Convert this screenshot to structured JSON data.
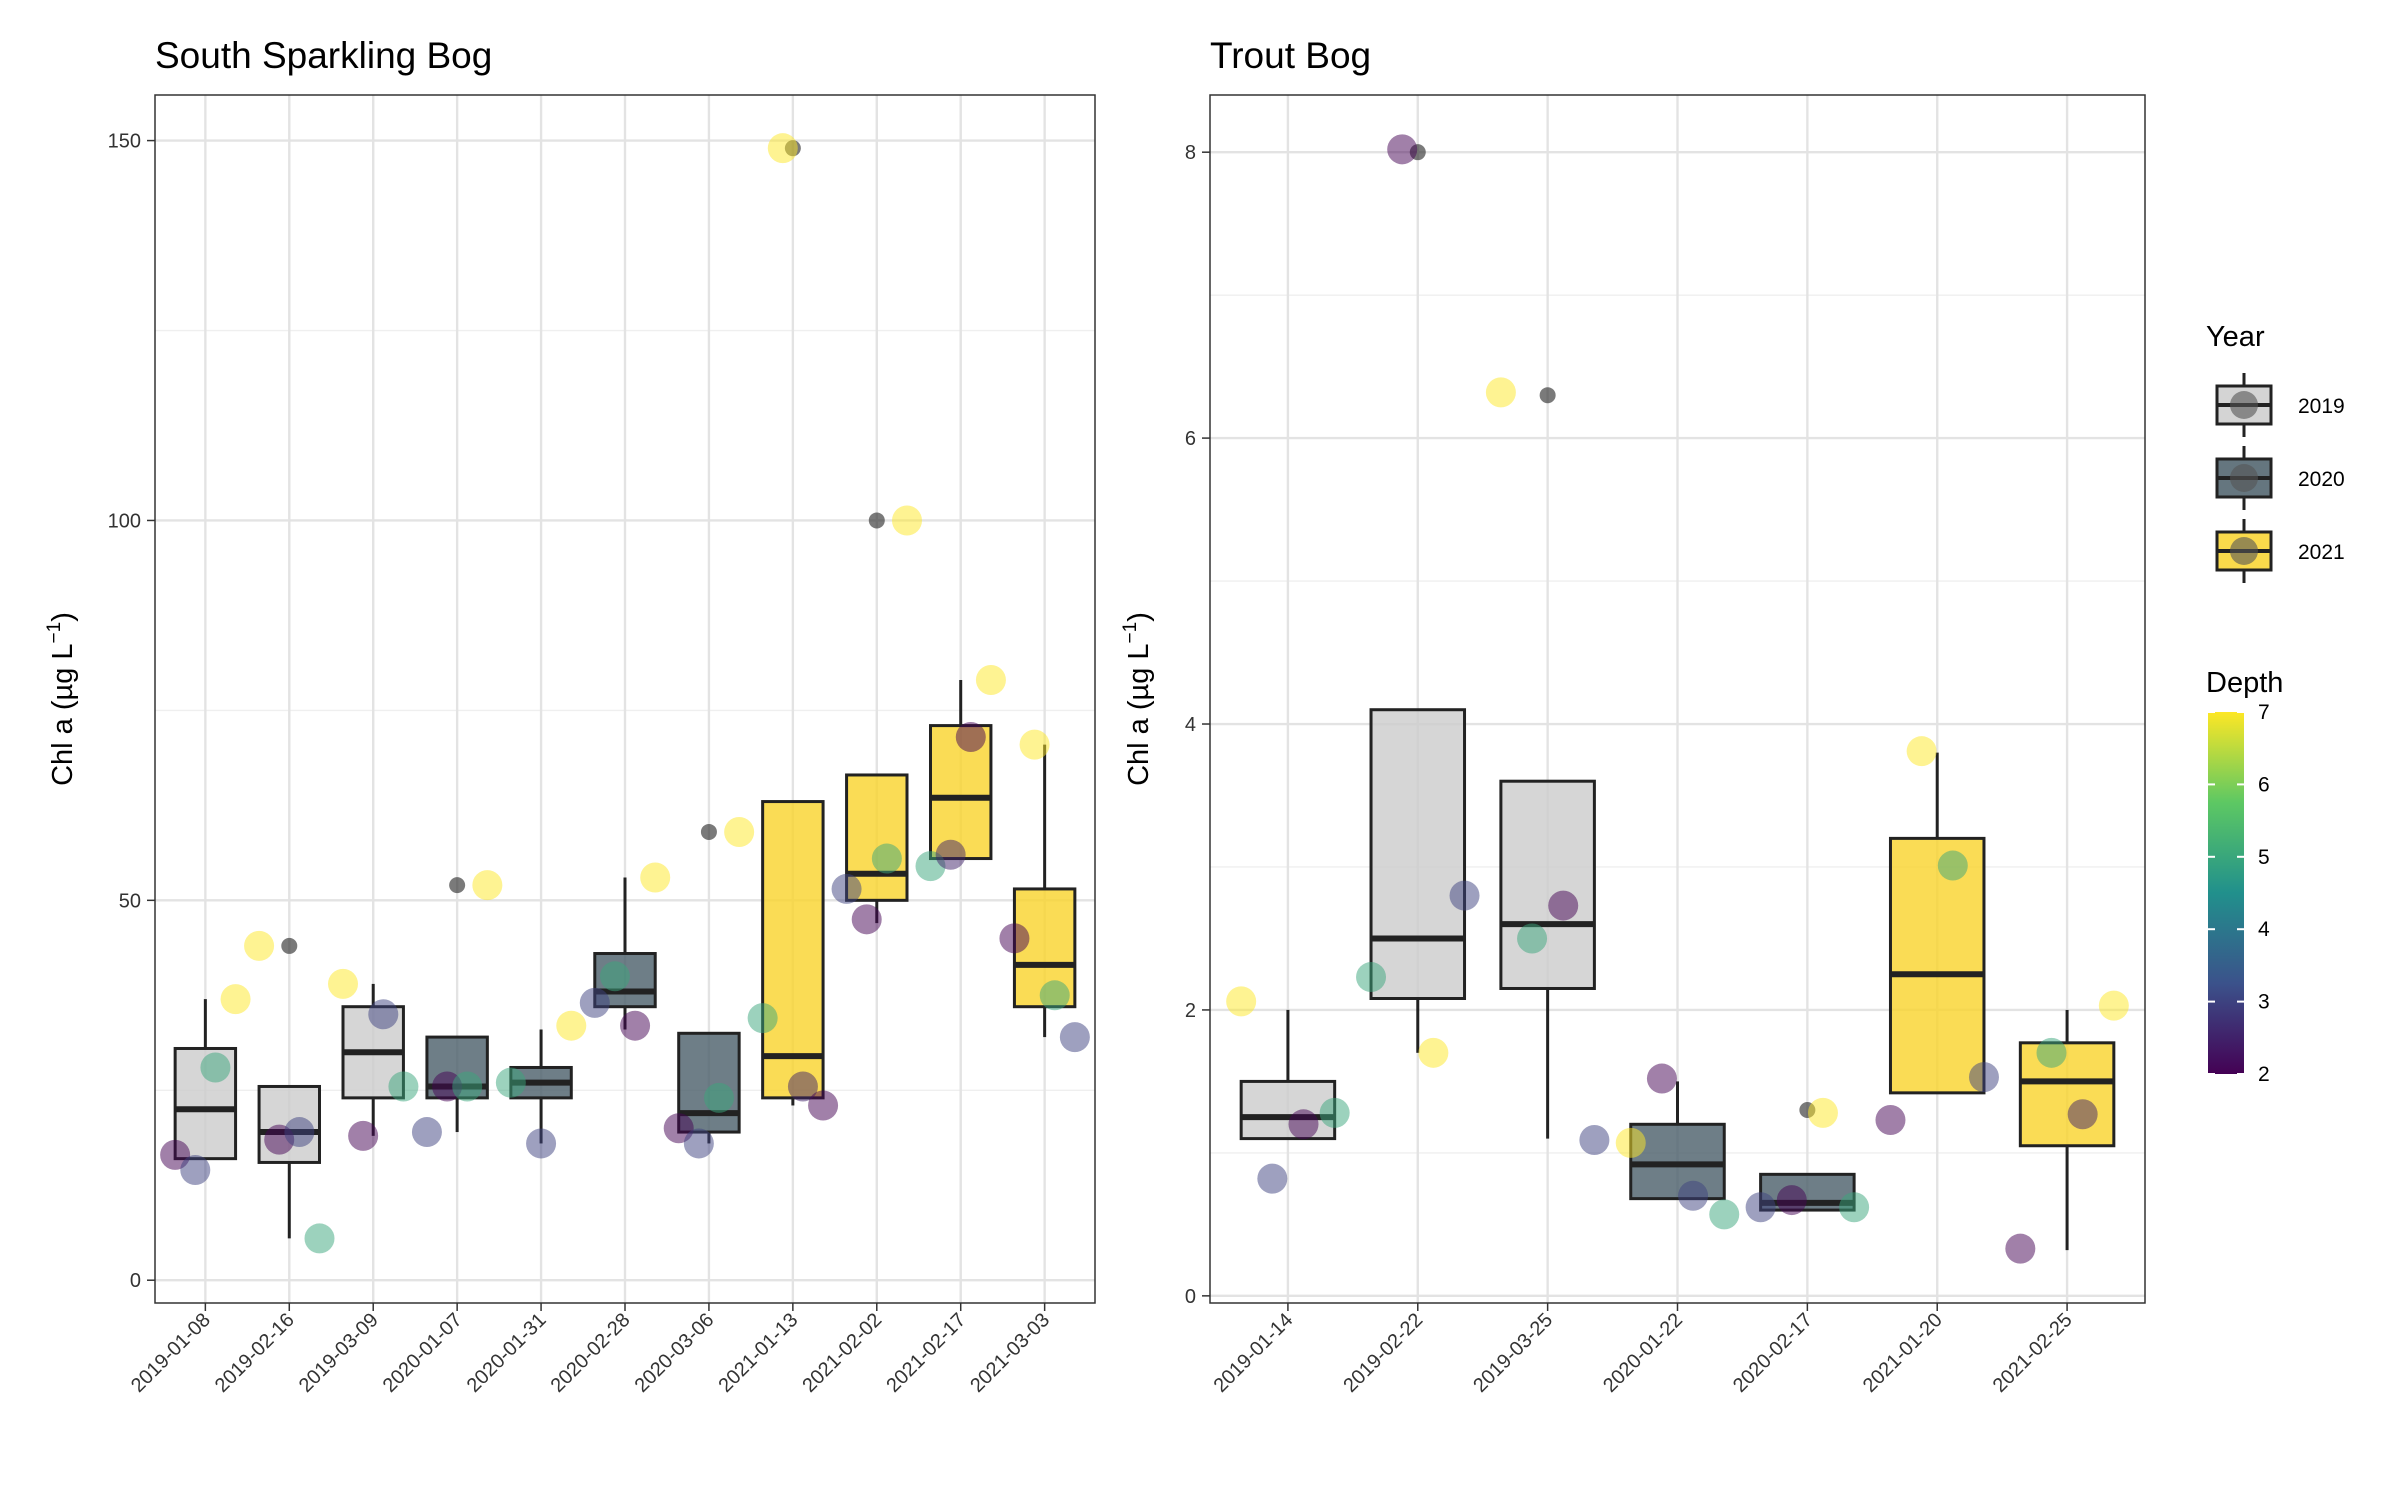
{
  "chart_data": [
    {
      "type": "box",
      "title": "South Sparkling Bog",
      "xlabel": "",
      "ylabel": "Chl a (µg L⁻¹)",
      "ylim": [
        -3,
        156
      ],
      "yticks": [
        0,
        50,
        100,
        150
      ],
      "grid": true,
      "categories": [
        "2019-01-08",
        "2019-02-16",
        "2019-03-09",
        "2020-01-07",
        "2020-01-31",
        "2020-02-28",
        "2020-03-06",
        "2021-01-13",
        "2021-02-02",
        "2021-02-17",
        "2021-03-03"
      ],
      "boxes": [
        {
          "date": "2019-01-08",
          "year": 2019,
          "whisker_low": 16,
          "q1": 16,
          "median": 22.5,
          "q3": 30.5,
          "whisker_high": 37
        },
        {
          "date": "2019-02-16",
          "year": 2019,
          "whisker_low": 5.5,
          "q1": 15.5,
          "median": 19.5,
          "q3": 25.5,
          "whisker_high": 25.5
        },
        {
          "date": "2019-03-09",
          "year": 2019,
          "whisker_low": 19,
          "q1": 24,
          "median": 30,
          "q3": 36,
          "whisker_high": 39
        },
        {
          "date": "2020-01-07",
          "year": 2020,
          "whisker_low": 19.5,
          "q1": 24,
          "median": 25.5,
          "q3": 32,
          "whisker_high": 32
        },
        {
          "date": "2020-01-31",
          "year": 2020,
          "whisker_low": 18,
          "q1": 24,
          "median": 26,
          "q3": 28,
          "whisker_high": 33
        },
        {
          "date": "2020-02-28",
          "year": 2020,
          "whisker_low": 33,
          "q1": 36,
          "median": 38,
          "q3": 43,
          "whisker_high": 53
        },
        {
          "date": "2020-03-06",
          "year": 2020,
          "whisker_low": 18,
          "q1": 19.5,
          "median": 22,
          "q3": 32.5,
          "whisker_high": 32.5
        },
        {
          "date": "2021-01-13",
          "year": 2021,
          "whisker_low": 23,
          "q1": 24,
          "median": 29.5,
          "q3": 63,
          "whisker_high": 63
        },
        {
          "date": "2021-02-02",
          "year": 2021,
          "whisker_low": 47,
          "q1": 50,
          "median": 53.5,
          "q3": 66.5,
          "whisker_high": 66.5
        },
        {
          "date": "2021-02-17",
          "year": 2021,
          "whisker_low": 55.5,
          "q1": 55.5,
          "median": 63.5,
          "q3": 73,
          "whisker_high": 79
        },
        {
          "date": "2021-03-03",
          "year": 2021,
          "whisker_low": 32,
          "q1": 36,
          "median": 41.5,
          "q3": 51.5,
          "whisker_high": 70.5
        }
      ],
      "outliers": [
        {
          "date": "2019-02-16",
          "year": 2019,
          "value": 44
        },
        {
          "date": "2020-01-07",
          "year": 2020,
          "value": 52
        },
        {
          "date": "2020-03-06",
          "year": 2020,
          "value": 59
        },
        {
          "date": "2021-01-13",
          "year": 2021,
          "value": 149
        },
        {
          "date": "2021-02-02",
          "year": 2021,
          "value": 100
        }
      ],
      "points": [
        {
          "date": "2019-01-08",
          "year": 2019,
          "depth": 2,
          "value": 16.5
        },
        {
          "date": "2019-01-08",
          "year": 2019,
          "depth": 3,
          "value": 14.5
        },
        {
          "date": "2019-01-08",
          "year": 2019,
          "depth": 5,
          "value": 28
        },
        {
          "date": "2019-01-08",
          "year": 2019,
          "depth": 7,
          "value": 37
        },
        {
          "date": "2019-02-16",
          "year": 2019,
          "depth": 7,
          "value": 44
        },
        {
          "date": "2019-02-16",
          "year": 2019,
          "depth": 2,
          "value": 18.5
        },
        {
          "date": "2019-02-16",
          "year": 2019,
          "depth": 3,
          "value": 19.5
        },
        {
          "date": "2019-02-16",
          "year": 2019,
          "depth": 5,
          "value": 5.5
        },
        {
          "date": "2019-03-09",
          "year": 2019,
          "depth": 7,
          "value": 39
        },
        {
          "date": "2019-03-09",
          "year": 2019,
          "depth": 2,
          "value": 19
        },
        {
          "date": "2019-03-09",
          "year": 2019,
          "depth": 3,
          "value": 35
        },
        {
          "date": "2019-03-09",
          "year": 2019,
          "depth": 5,
          "value": 25.5
        },
        {
          "date": "2020-01-07",
          "year": 2020,
          "depth": 3,
          "value": 19.5
        },
        {
          "date": "2020-01-07",
          "year": 2020,
          "depth": 2,
          "value": 25.5
        },
        {
          "date": "2020-01-07",
          "year": 2020,
          "depth": 5,
          "value": 25.5
        },
        {
          "date": "2020-01-07",
          "year": 2020,
          "depth": 7,
          "value": 52
        },
        {
          "date": "2020-01-31",
          "year": 2020,
          "depth": 5,
          "value": 26
        },
        {
          "date": "2020-01-31",
          "year": 2020,
          "depth": 3,
          "value": 18
        },
        {
          "date": "2020-01-31",
          "year": 2020,
          "depth": 7,
          "value": 33.5
        },
        {
          "date": "2020-02-28",
          "year": 2020,
          "depth": 3,
          "value": 36.5
        },
        {
          "date": "2020-02-28",
          "year": 2020,
          "depth": 5,
          "value": 40
        },
        {
          "date": "2020-02-28",
          "year": 2020,
          "depth": 2,
          "value": 33.5
        },
        {
          "date": "2020-02-28",
          "year": 2020,
          "depth": 7,
          "value": 53
        },
        {
          "date": "2020-03-06",
          "year": 2020,
          "depth": 2,
          "value": 20
        },
        {
          "date": "2020-03-06",
          "year": 2020,
          "depth": 3,
          "value": 18
        },
        {
          "date": "2020-03-06",
          "year": 2020,
          "depth": 5,
          "value": 24
        },
        {
          "date": "2020-03-06",
          "year": 2020,
          "depth": 7,
          "value": 59
        },
        {
          "date": "2021-01-13",
          "year": 2021,
          "depth": 5,
          "value": 34.5
        },
        {
          "date": "2021-01-13",
          "year": 2021,
          "depth": 7,
          "value": 149
        },
        {
          "date": "2021-01-13",
          "year": 2021,
          "depth": 2.5,
          "value": 25.5
        },
        {
          "date": "2021-01-13",
          "year": 2021,
          "depth": 2,
          "value": 23
        },
        {
          "date": "2021-02-02",
          "year": 2021,
          "depth": 3,
          "value": 51.5
        },
        {
          "date": "2021-02-02",
          "year": 2021,
          "depth": 2,
          "value": 47.5
        },
        {
          "date": "2021-02-02",
          "year": 2021,
          "depth": 5,
          "value": 55.5
        },
        {
          "date": "2021-02-02",
          "year": 2021,
          "depth": 7,
          "value": 100
        },
        {
          "date": "2021-02-17",
          "year": 2021,
          "depth": 5,
          "value": 54.5
        },
        {
          "date": "2021-02-17",
          "year": 2021,
          "depth": 2.5,
          "value": 56
        },
        {
          "date": "2021-02-17",
          "year": 2021,
          "depth": 2,
          "value": 71.5
        },
        {
          "date": "2021-02-17",
          "year": 2021,
          "depth": 7,
          "value": 79
        },
        {
          "date": "2021-03-03",
          "year": 2021,
          "depth": 2,
          "value": 45
        },
        {
          "date": "2021-03-03",
          "year": 2021,
          "depth": 7,
          "value": 70.5
        },
        {
          "date": "2021-03-03",
          "year": 2021,
          "depth": 5,
          "value": 37.5
        },
        {
          "date": "2021-03-03",
          "year": 2021,
          "depth": 3,
          "value": 32
        }
      ]
    },
    {
      "type": "box",
      "title": "Trout Bog",
      "xlabel": "",
      "ylabel": "Chl a (µg L⁻¹)",
      "ylim": [
        -0.05,
        8.4
      ],
      "yticks": [
        0,
        2,
        4,
        6,
        8
      ],
      "grid": true,
      "categories": [
        "2019-01-14",
        "2019-02-22",
        "2019-03-25",
        "2020-01-22",
        "2020-02-17",
        "2021-01-20",
        "2021-02-25"
      ],
      "boxes": [
        {
          "date": "2019-01-14",
          "year": 2019,
          "whisker_low": 1.1,
          "q1": 1.1,
          "median": 1.25,
          "q3": 1.5,
          "whisker_high": 2.0
        },
        {
          "date": "2019-02-22",
          "year": 2019,
          "whisker_low": 1.7,
          "q1": 2.08,
          "median": 2.5,
          "q3": 4.1,
          "whisker_high": 4.1
        },
        {
          "date": "2019-03-25",
          "year": 2019,
          "whisker_low": 1.1,
          "q1": 2.15,
          "median": 2.6,
          "q3": 3.6,
          "whisker_high": 3.6
        },
        {
          "date": "2020-01-22",
          "year": 2020,
          "whisker_low": 0.68,
          "q1": 0.68,
          "median": 0.92,
          "q3": 1.2,
          "whisker_high": 1.5
        },
        {
          "date": "2020-02-17",
          "year": 2020,
          "whisker_low": 0.6,
          "q1": 0.6,
          "median": 0.65,
          "q3": 0.85,
          "whisker_high": 0.85
        },
        {
          "date": "2021-01-20",
          "year": 2021,
          "whisker_low": 1.42,
          "q1": 1.42,
          "median": 2.25,
          "q3": 3.2,
          "whisker_high": 3.8
        },
        {
          "date": "2021-02-25",
          "year": 2021,
          "whisker_low": 0.32,
          "q1": 1.05,
          "median": 1.5,
          "q3": 1.77,
          "whisker_high": 2.0
        }
      ],
      "outliers": [
        {
          "date": "2019-02-22",
          "year": 2019,
          "value": 8.0
        },
        {
          "date": "2019-03-25",
          "year": 2019,
          "value": 6.3
        },
        {
          "date": "2020-02-17",
          "year": 2020,
          "value": 1.3
        }
      ],
      "points": [
        {
          "date": "2019-01-14",
          "year": 2019,
          "depth": 7,
          "value": 2.06
        },
        {
          "date": "2019-01-14",
          "year": 2019,
          "depth": 3,
          "value": 0.82
        },
        {
          "date": "2019-01-14",
          "year": 2019,
          "depth": 2,
          "value": 1.2
        },
        {
          "date": "2019-01-14",
          "year": 2019,
          "depth": 5,
          "value": 1.28
        },
        {
          "date": "2019-02-22",
          "year": 2019,
          "depth": 5,
          "value": 2.23
        },
        {
          "date": "2019-02-22",
          "year": 2019,
          "depth": 2,
          "value": 8.02
        },
        {
          "date": "2019-02-22",
          "year": 2019,
          "depth": 7,
          "value": 1.7
        },
        {
          "date": "2019-02-22",
          "year": 2019,
          "depth": 3,
          "value": 2.8
        },
        {
          "date": "2019-03-25",
          "year": 2019,
          "depth": 7,
          "value": 6.32
        },
        {
          "date": "2019-03-25",
          "year": 2019,
          "depth": 5,
          "value": 2.5
        },
        {
          "date": "2019-03-25",
          "year": 2019,
          "depth": 2,
          "value": 2.73
        },
        {
          "date": "2019-03-25",
          "year": 2019,
          "depth": 3,
          "value": 1.09
        },
        {
          "date": "2020-01-22",
          "year": 2020,
          "depth": 7,
          "value": 1.07
        },
        {
          "date": "2020-01-22",
          "year": 2020,
          "depth": 2,
          "value": 1.52
        },
        {
          "date": "2020-01-22",
          "year": 2020,
          "depth": 3,
          "value": 0.7
        },
        {
          "date": "2020-01-22",
          "year": 2020,
          "depth": 5,
          "value": 0.57
        },
        {
          "date": "2020-02-17",
          "year": 2020,
          "depth": 3,
          "value": 0.62
        },
        {
          "date": "2020-02-17",
          "year": 2020,
          "depth": 2,
          "value": 0.67
        },
        {
          "date": "2020-02-17",
          "year": 2020,
          "depth": 7,
          "value": 1.28
        },
        {
          "date": "2020-02-17",
          "year": 2020,
          "depth": 5,
          "value": 0.62
        },
        {
          "date": "2021-01-20",
          "year": 2021,
          "depth": 2,
          "value": 1.23
        },
        {
          "date": "2021-01-20",
          "year": 2021,
          "depth": 7,
          "value": 3.81
        },
        {
          "date": "2021-01-20",
          "year": 2021,
          "depth": 5,
          "value": 3.01
        },
        {
          "date": "2021-01-20",
          "year": 2021,
          "depth": 3,
          "value": 1.53
        },
        {
          "date": "2021-02-25",
          "year": 2021,
          "depth": 2,
          "value": 0.33
        },
        {
          "date": "2021-02-25",
          "year": 2021,
          "depth": 5,
          "value": 1.7
        },
        {
          "date": "2021-02-25",
          "year": 2021,
          "depth": 2.5,
          "value": 1.27
        },
        {
          "date": "2021-02-25",
          "year": 2021,
          "depth": 7,
          "value": 2.03
        }
      ]
    }
  ],
  "legend": {
    "placement": "right",
    "year_title": "Year",
    "years": [
      {
        "label": "2019",
        "color": "#cccccc"
      },
      {
        "label": "2020",
        "color": "#4a5e69"
      },
      {
        "label": "2021",
        "color": "#f9d32b"
      }
    ],
    "depth_title": "Depth",
    "depth_range": [
      2,
      7
    ],
    "depth_ticks": [
      "2",
      "3",
      "4",
      "5",
      "6",
      "7"
    ]
  },
  "colors": {
    "box_2019": "#cccccc",
    "box_2020": "#4a5e69",
    "box_2021": "#f9d32b",
    "outlier": "#333333",
    "viridis": [
      "#440154",
      "#3b528b",
      "#21908c",
      "#5dc863",
      "#fde725"
    ]
  }
}
